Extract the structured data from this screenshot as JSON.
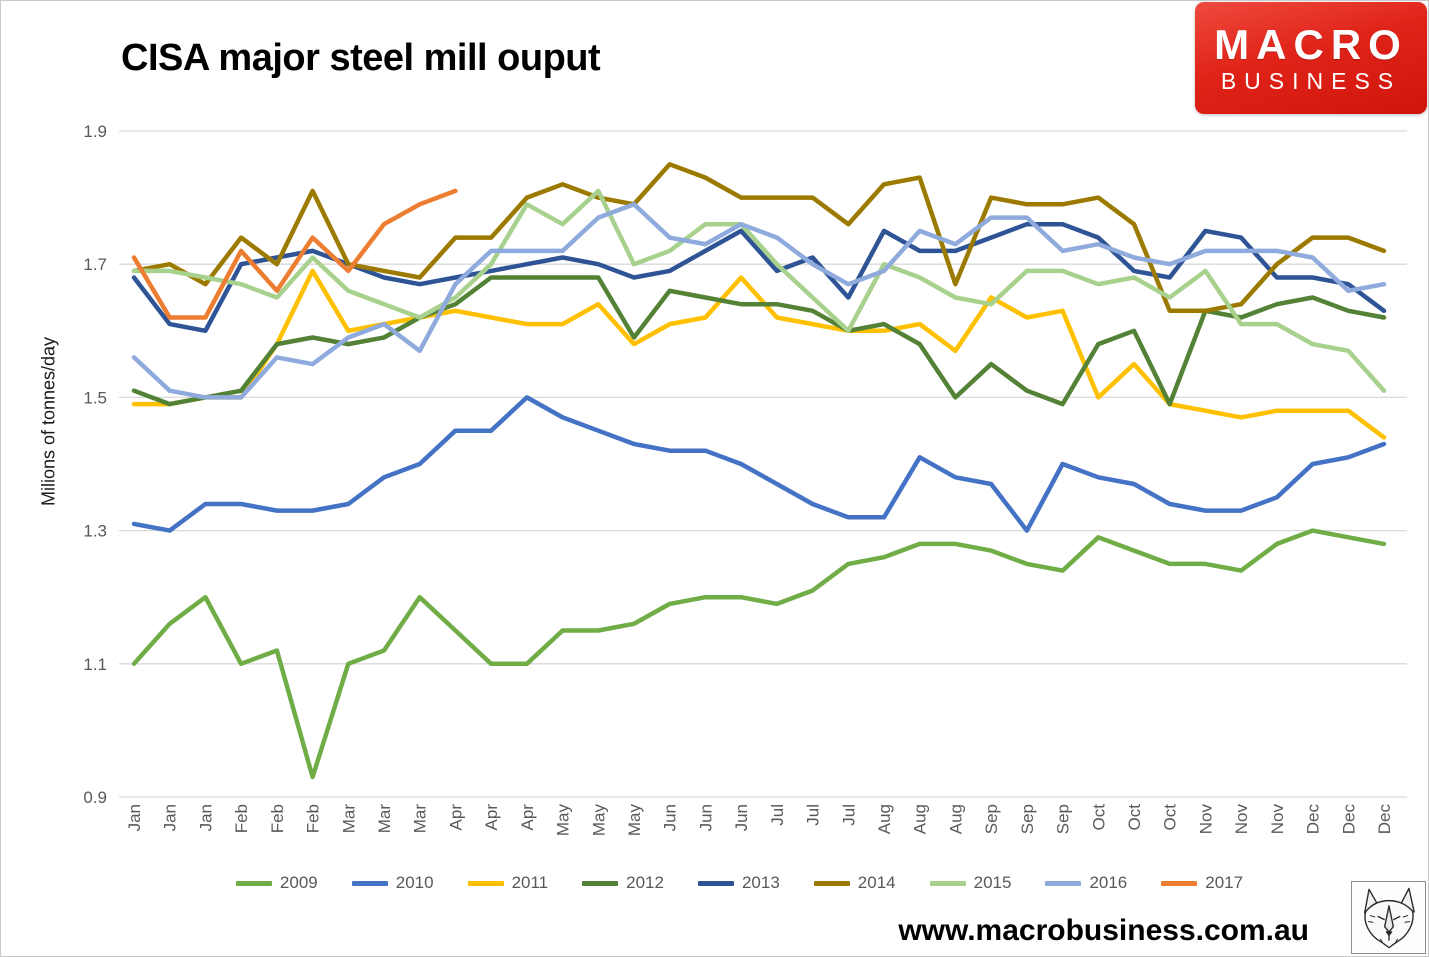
{
  "header": {
    "logo": {
      "line1": "MACRO",
      "line2": "BUSINESS",
      "bg_color": "#DD1F14",
      "text_color": "#FFFFFF"
    }
  },
  "footer": {
    "website": "www.macrobusiness.com.au",
    "logo_icon": "wolf-sketch-logo"
  },
  "chart_data": {
    "type": "line",
    "title": "CISA major steel mill ouput",
    "ylabel": "Milions of tonnes/day",
    "xlabel": "",
    "ylim": [
      0.9,
      1.9
    ],
    "yticks": [
      1.9,
      1.7,
      1.5,
      1.3,
      1.1,
      0.9
    ],
    "grid": "horizontal",
    "grid_color": "#D9D9D9",
    "tick_color": "#595959",
    "legend_position": "bottom",
    "x_labels": [
      "Jan",
      "Jan",
      "Jan",
      "Feb",
      "Feb",
      "Feb",
      "Mar",
      "Mar",
      "Mar",
      "Apr",
      "Apr",
      "Apr",
      "May",
      "May",
      "May",
      "Jun",
      "Jun",
      "Jun",
      "Jul",
      "Jul",
      "Jul",
      "Aug",
      "Aug",
      "Aug",
      "Sep",
      "Sep",
      "Sep",
      "Oct",
      "Oct",
      "Oct",
      "Nov",
      "Nov",
      "Nov",
      "Dec",
      "Dec",
      "Dec"
    ],
    "series": [
      {
        "name": "2009",
        "color": "#70AD47",
        "values": [
          1.1,
          1.16,
          1.2,
          1.1,
          1.12,
          0.93,
          1.1,
          1.12,
          1.2,
          1.15,
          1.1,
          1.1,
          1.15,
          1.15,
          1.16,
          1.19,
          1.2,
          1.2,
          1.19,
          1.21,
          1.25,
          1.26,
          1.28,
          1.28,
          1.27,
          1.25,
          1.24,
          1.29,
          1.27,
          1.25,
          1.25,
          1.24,
          1.28,
          1.3,
          1.29,
          1.28
        ]
      },
      {
        "name": "2010",
        "color": "#4472C4",
        "values": [
          1.31,
          1.3,
          1.34,
          1.34,
          1.33,
          1.33,
          1.34,
          1.38,
          1.4,
          1.45,
          1.45,
          1.5,
          1.47,
          1.45,
          1.43,
          1.42,
          1.42,
          1.4,
          1.37,
          1.34,
          1.32,
          1.32,
          1.41,
          1.38,
          1.37,
          1.3,
          1.4,
          1.38,
          1.37,
          1.34,
          1.33,
          1.33,
          1.35,
          1.4,
          1.41,
          1.43
        ]
      },
      {
        "name": "2011",
        "color": "#FFC000",
        "values": [
          1.49,
          1.49,
          1.5,
          1.5,
          1.58,
          1.69,
          1.6,
          1.61,
          1.62,
          1.63,
          1.62,
          1.61,
          1.61,
          1.64,
          1.58,
          1.61,
          1.62,
          1.68,
          1.62,
          1.61,
          1.6,
          1.6,
          1.61,
          1.57,
          1.65,
          1.62,
          1.63,
          1.5,
          1.55,
          1.49,
          1.48,
          1.47,
          1.48,
          1.48,
          1.48,
          1.44
        ]
      },
      {
        "name": "2012",
        "color": "#538135",
        "values": [
          1.51,
          1.49,
          1.5,
          1.51,
          1.58,
          1.59,
          1.58,
          1.59,
          1.62,
          1.64,
          1.68,
          1.68,
          1.68,
          1.68,
          1.59,
          1.66,
          1.65,
          1.64,
          1.64,
          1.63,
          1.6,
          1.61,
          1.58,
          1.5,
          1.55,
          1.51,
          1.49,
          1.58,
          1.6,
          1.49,
          1.63,
          1.62,
          1.64,
          1.65,
          1.63,
          1.62
        ]
      },
      {
        "name": "2013",
        "color": "#2F5496",
        "values": [
          1.68,
          1.61,
          1.6,
          1.7,
          1.71,
          1.72,
          1.7,
          1.68,
          1.67,
          1.68,
          1.69,
          1.7,
          1.71,
          1.7,
          1.68,
          1.69,
          1.72,
          1.75,
          1.69,
          1.71,
          1.65,
          1.75,
          1.72,
          1.72,
          1.74,
          1.76,
          1.76,
          1.74,
          1.69,
          1.68,
          1.75,
          1.74,
          1.68,
          1.68,
          1.67,
          1.63
        ]
      },
      {
        "name": "2014",
        "color": "#9C7A00",
        "values": [
          1.69,
          1.7,
          1.67,
          1.74,
          1.7,
          1.81,
          1.7,
          1.69,
          1.68,
          1.74,
          1.74,
          1.8,
          1.82,
          1.8,
          1.79,
          1.85,
          1.83,
          1.8,
          1.8,
          1.8,
          1.76,
          1.82,
          1.83,
          1.67,
          1.8,
          1.79,
          1.79,
          1.8,
          1.76,
          1.63,
          1.63,
          1.64,
          1.7,
          1.74,
          1.74,
          1.72
        ]
      },
      {
        "name": "2015",
        "color": "#A9D18E",
        "values": [
          1.69,
          1.69,
          1.68,
          1.67,
          1.65,
          1.71,
          1.66,
          1.64,
          1.62,
          1.65,
          1.7,
          1.79,
          1.76,
          1.81,
          1.7,
          1.72,
          1.76,
          1.76,
          1.7,
          1.65,
          1.6,
          1.7,
          1.68,
          1.65,
          1.64,
          1.69,
          1.69,
          1.67,
          1.68,
          1.65,
          1.69,
          1.61,
          1.61,
          1.58,
          1.57,
          1.51
        ]
      },
      {
        "name": "2016",
        "color": "#8FAADC",
        "values": [
          1.56,
          1.51,
          1.5,
          1.5,
          1.56,
          1.55,
          1.59,
          1.61,
          1.57,
          1.67,
          1.72,
          1.72,
          1.72,
          1.77,
          1.79,
          1.74,
          1.73,
          1.76,
          1.74,
          1.7,
          1.67,
          1.69,
          1.75,
          1.73,
          1.77,
          1.77,
          1.72,
          1.73,
          1.71,
          1.7,
          1.72,
          1.72,
          1.72,
          1.71,
          1.66,
          1.67
        ]
      },
      {
        "name": "2017",
        "color": "#ED7D31",
        "values": [
          1.71,
          1.62,
          1.62,
          1.72,
          1.66,
          1.74,
          1.69,
          1.76,
          1.79,
          1.81
        ]
      }
    ]
  }
}
